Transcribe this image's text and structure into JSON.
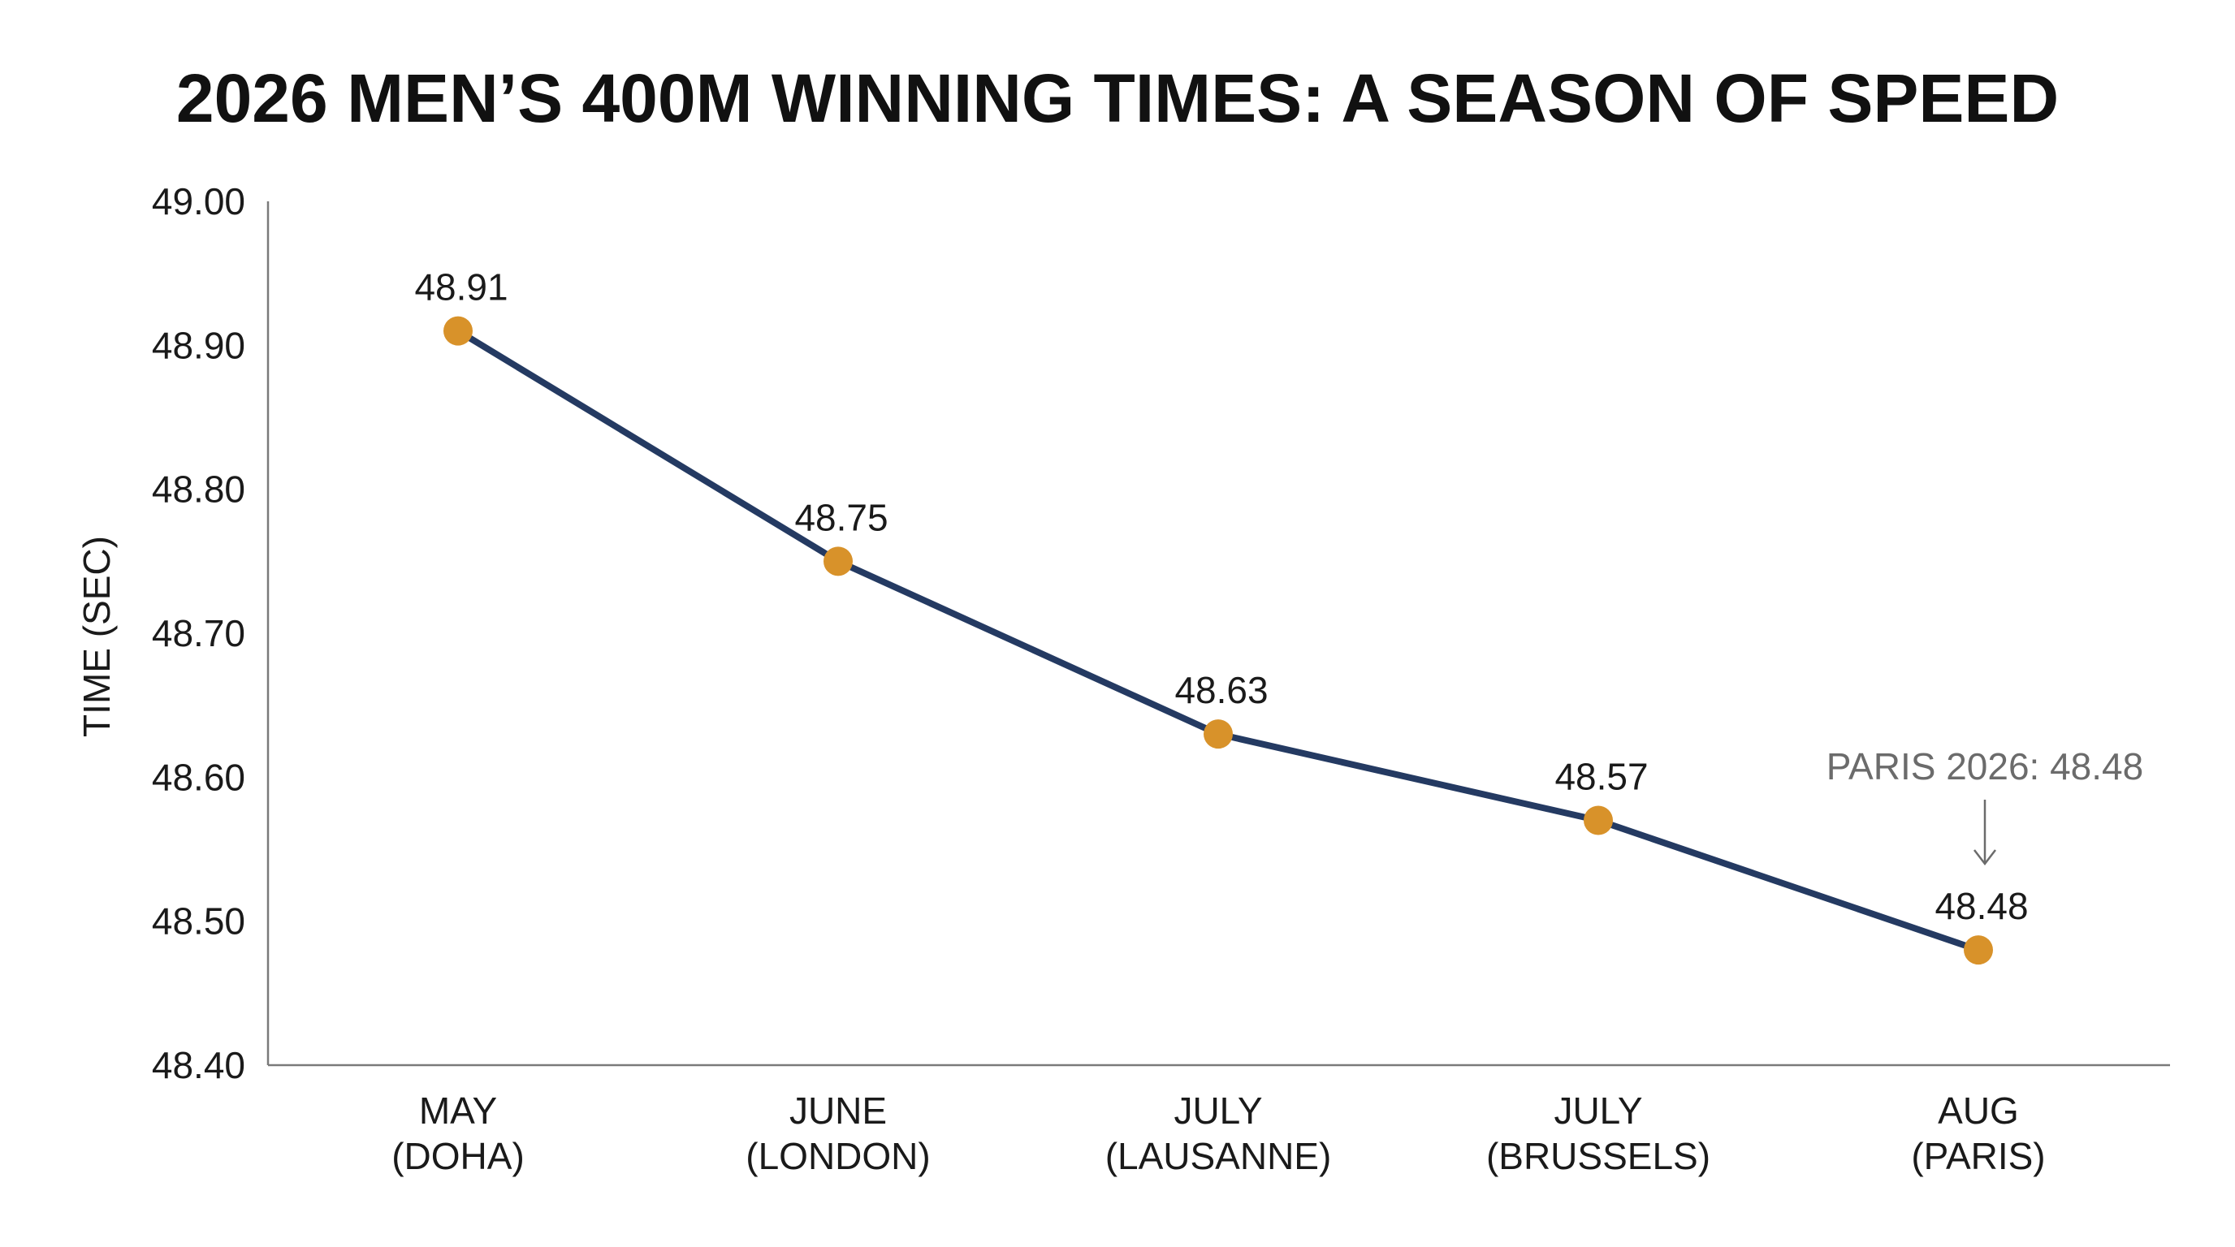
{
  "title": "2026 MEN’S 400M WINNING TIMES: A SEASON OF SPEED",
  "chart_data": {
    "type": "line",
    "title": "2026 MEN’S 400M WINNING TIMES: A SEASON OF SPEED",
    "xlabel": "",
    "ylabel": "TIME (SEC)",
    "categories": [
      [
        "MAY",
        "(DOHA)"
      ],
      [
        "JUNE",
        "(LONDON)"
      ],
      [
        "JULY",
        "(LAUSANNE)"
      ],
      [
        "JULY",
        "(BRUSSELS)"
      ],
      [
        "AUG",
        "(PARIS)"
      ]
    ],
    "values": [
      48.91,
      48.75,
      48.63,
      48.57,
      48.48
    ],
    "data_labels": [
      "48.91",
      "48.75",
      "48.63",
      "48.57",
      "48.48"
    ],
    "ylim": [
      48.4,
      49.0
    ],
    "yticks": [
      "48.40",
      "48.50",
      "48.60",
      "48.70",
      "48.80",
      "48.90",
      "49.00"
    ],
    "grid": false,
    "annotation": {
      "text": "PARIS 2026: 48.48",
      "target_index": 4
    },
    "colors": {
      "line": "#243a62",
      "marker": "#d8922a",
      "axis": "#7a7a7a",
      "annotation": "#6b6b6b"
    }
  }
}
